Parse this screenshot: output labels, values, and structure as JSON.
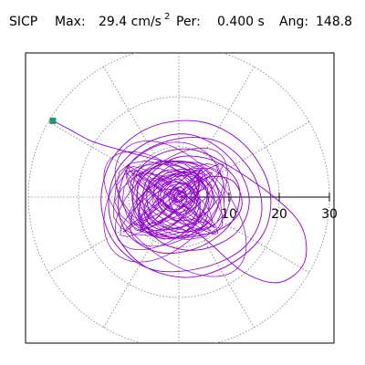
{
  "header": {
    "station": "SICP",
    "max_label": "Max:",
    "max_value": "29.4 cm/s",
    "max_exponent": "2",
    "period_label": "Per:",
    "period_value": "0.400 s",
    "angle_label": "Ang:",
    "angle_value": "148.8"
  },
  "colors": {
    "trace": "#8b00cc",
    "marker": "#1a9a7a",
    "grid": "#7a7a7a",
    "axis": "#000000",
    "frame": "#000000"
  },
  "chart_data": {
    "type": "scatter",
    "subtype": "polar particle-motion hodograph",
    "title": "",
    "xlabel": "",
    "ylabel": "",
    "radial_range": [
      0,
      30
    ],
    "radial_ticks": [
      10,
      20,
      30
    ],
    "radial_tick_labels": [
      "10",
      "20",
      "30"
    ],
    "grid": true,
    "grid_rings": [
      10,
      20,
      30
    ],
    "grid_spoke_angles_deg": [
      0,
      30,
      60,
      90,
      120,
      150,
      180,
      210,
      240,
      270,
      300,
      330
    ],
    "peak_amplitude": 29.4,
    "peak_angle_deg": 148.8,
    "series": [
      {
        "values_description": "acceleration trace (x east, y north, cm/s²)",
        "points": [
          [
            -25.1,
            15.2
          ],
          [
            -22.0,
            13.6
          ],
          [
            -17.5,
            11.2
          ],
          [
            -12.0,
            9.5
          ],
          [
            -6.5,
            8.0
          ],
          [
            0.5,
            6.0
          ],
          [
            5.5,
            3.0
          ],
          [
            7.0,
            -1.0
          ],
          [
            4.0,
            -4.0
          ],
          [
            -1.0,
            -4.5
          ],
          [
            -4.0,
            -1.5
          ],
          [
            -3.5,
            2.0
          ],
          [
            0.0,
            3.5
          ],
          [
            3.0,
            1.0
          ],
          [
            2.5,
            -2.0
          ],
          [
            -1.5,
            -3.0
          ],
          [
            -5.0,
            1.0
          ],
          [
            -2.0,
            5.0
          ],
          [
            3.5,
            4.0
          ],
          [
            6.0,
            0.0
          ],
          [
            3.0,
            -5.0
          ],
          [
            -3.0,
            -6.0
          ],
          [
            -7.0,
            -2.0
          ],
          [
            -6.0,
            4.0
          ],
          [
            0.0,
            8.0
          ],
          [
            7.5,
            7.0
          ],
          [
            12.0,
            2.0
          ],
          [
            10.5,
            -5.0
          ],
          [
            4.0,
            -10.0
          ],
          [
            -4.0,
            -11.0
          ],
          [
            -10.5,
            -7.0
          ],
          [
            -12.0,
            0.0
          ],
          [
            -9.0,
            7.5
          ],
          [
            -1.0,
            11.5
          ],
          [
            8.0,
            11.0
          ],
          [
            14.5,
            5.0
          ],
          [
            16.5,
            -3.0
          ],
          [
            13.0,
            -10.0
          ],
          [
            5.0,
            -14.0
          ],
          [
            -5.0,
            -14.5
          ],
          [
            -12.5,
            -9.5
          ],
          [
            -15.5,
            -1.0
          ],
          [
            -13.0,
            8.0
          ],
          [
            -5.5,
            14.0
          ],
          [
            4.5,
            15.0
          ],
          [
            13.0,
            10.5
          ],
          [
            18.0,
            2.0
          ],
          [
            17.0,
            -7.0
          ],
          [
            10.0,
            -13.5
          ],
          [
            1.0,
            -16.0
          ],
          [
            -8.0,
            -13.0
          ],
          [
            -13.5,
            -5.0
          ],
          [
            -13.0,
            4.0
          ],
          [
            -7.0,
            10.5
          ],
          [
            2.0,
            12.5
          ],
          [
            10.0,
            8.0
          ],
          [
            14.0,
            0.0
          ],
          [
            11.5,
            -7.0
          ],
          [
            4.0,
            -10.5
          ],
          [
            -3.5,
            -9.0
          ],
          [
            -8.0,
            -3.0
          ],
          [
            -7.5,
            3.5
          ],
          [
            -2.0,
            7.0
          ],
          [
            4.5,
            6.0
          ],
          [
            8.0,
            0.5
          ],
          [
            6.0,
            -5.0
          ],
          [
            0.0,
            -7.0
          ],
          [
            -5.5,
            -3.5
          ],
          [
            -6.0,
            2.5
          ],
          [
            -1.5,
            5.5
          ],
          [
            3.0,
            3.0
          ],
          [
            3.5,
            -1.5
          ],
          [
            0.0,
            -3.5
          ],
          [
            -3.0,
            -1.0
          ],
          [
            -2.0,
            2.0
          ],
          [
            1.5,
            2.5
          ],
          [
            2.5,
            -0.5
          ],
          [
            0.5,
            -2.0
          ],
          [
            -1.5,
            -0.5
          ],
          [
            -0.5,
            1.5
          ],
          [
            1.0,
            1.0
          ],
          [
            6.0,
            4.0
          ],
          [
            11.0,
            3.0
          ],
          [
            12.5,
            -2.0
          ],
          [
            9.0,
            -6.0
          ],
          [
            2.0,
            -8.0
          ],
          [
            -5.0,
            -7.0
          ],
          [
            -9.0,
            -2.0
          ],
          [
            -8.5,
            4.5
          ],
          [
            -4.0,
            8.5
          ],
          [
            2.5,
            9.5
          ],
          [
            9.5,
            6.5
          ],
          [
            19.0,
            0.0
          ],
          [
            24.5,
            -6.0
          ],
          [
            25.0,
            -13.0
          ],
          [
            20.0,
            -17.0
          ],
          [
            13.0,
            -15.0
          ],
          [
            6.0,
            -9.0
          ],
          [
            0.0,
            -4.0
          ],
          [
            -2.0,
            0.0
          ],
          [
            0.0,
            2.0
          ],
          [
            1.5,
            0.5
          ],
          [
            0.0,
            -1.0
          ],
          [
            -1.0,
            0.5
          ],
          [
            0.5,
            1.0
          ],
          [
            -3.0,
            1.5
          ],
          [
            -6.5,
            -1.0
          ],
          [
            -6.5,
            -4.5
          ],
          [
            -3.5,
            -6.5
          ],
          [
            1.5,
            -5.5
          ],
          [
            4.0,
            -2.0
          ],
          [
            3.0,
            1.5
          ],
          [
            -0.5,
            3.0
          ],
          [
            -3.5,
            1.5
          ],
          [
            -3.0,
            -1.5
          ],
          [
            -0.5,
            -2.5
          ],
          [
            1.5,
            -1.0
          ],
          [
            1.0,
            1.0
          ],
          [
            -0.5,
            1.0
          ],
          [
            -1.0,
            -0.5
          ],
          [
            0.0,
            -1.0
          ],
          [
            0.8,
            0.0
          ],
          [
            0.0,
            0.6
          ],
          [
            -0.5,
            0.0
          ]
        ]
      }
    ]
  }
}
